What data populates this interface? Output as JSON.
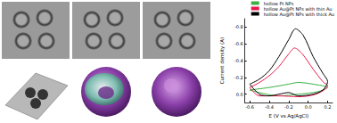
{
  "chart_data": {
    "type": "line",
    "xlabel": "E (V vs Ag/AgCl)",
    "ylabel": "Current density (A)",
    "xlim": [
      -0.65,
      0.25
    ],
    "xticks": [
      -0.6,
      -0.4,
      -0.2,
      {
        "value": 0,
        "label": "0.0"
      },
      0.2
    ],
    "ylim": [
      0.1,
      -0.9
    ],
    "yticks": [
      {
        "value": 0,
        "label": "0.0"
      },
      -0.2,
      -0.4,
      -0.6,
      -0.8
    ],
    "grid": false,
    "legend": "top right",
    "series": [
      {
        "name": "hollow Pt NPs",
        "color": "#3cb043",
        "x": [
          -0.6,
          -0.4,
          -0.2,
          -0.1,
          0.05,
          0.2,
          0.1,
          -0.1,
          -0.3,
          -0.6
        ],
        "values": [
          -0.05,
          -0.08,
          -0.12,
          -0.14,
          -0.12,
          -0.08,
          -0.03,
          0.0,
          0.02,
          -0.05
        ]
      },
      {
        "name": "hollow Au@Pt NPs with thin Au",
        "color": "#e8174b",
        "x": [
          -0.6,
          -0.5,
          -0.4,
          -0.3,
          -0.2,
          -0.14,
          -0.06,
          0.05,
          0.15,
          0.2,
          0.15,
          0.05,
          -0.1,
          -0.3,
          -0.5,
          -0.6
        ],
        "values": [
          -0.08,
          -0.14,
          -0.22,
          -0.33,
          -0.48,
          -0.55,
          -0.48,
          -0.3,
          -0.15,
          -0.1,
          -0.04,
          0.01,
          0.03,
          0.02,
          0.02,
          -0.08
        ]
      },
      {
        "name": "hollow Au@Pt NPs with thick Au",
        "color": "#000000",
        "x": [
          -0.6,
          -0.5,
          -0.4,
          -0.3,
          -0.2,
          -0.13,
          -0.05,
          0.05,
          0.15,
          0.2,
          0.15,
          0.05,
          -0.1,
          -0.2,
          -0.3,
          -0.4,
          -0.5,
          -0.6
        ],
        "values": [
          -0.12,
          -0.18,
          -0.28,
          -0.45,
          -0.65,
          -0.78,
          -0.7,
          -0.45,
          -0.25,
          -0.15,
          -0.05,
          0.0,
          0.02,
          -0.02,
          0.0,
          0.02,
          0.0,
          -0.12
        ]
      }
    ]
  }
}
